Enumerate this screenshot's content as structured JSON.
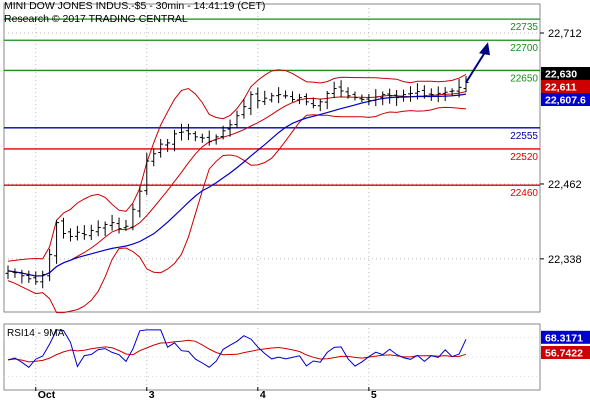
{
  "header": {
    "line1": "MINI DOW JONES INDUS.-$5 - 30min - 14:41:19 (CET)",
    "line2": "Research © 2017 TRADING CENTRAL"
  },
  "chart_data": {
    "type": "candlestick",
    "price_axis": {
      "ylim": [
        22250,
        22760
      ],
      "ticks": [
        "22,712",
        "22,462",
        "22,338"
      ],
      "tick_values": [
        22712,
        22462,
        22338
      ]
    },
    "time_axis": {
      "labels": [
        "Oct",
        "3",
        "4",
        "5"
      ],
      "bar_index": [
        4,
        20,
        36,
        52
      ],
      "count": 67
    },
    "levels": [
      {
        "label": "22735",
        "value": 22735,
        "color": "#1a8c1a"
      },
      {
        "label": "22700",
        "value": 22700,
        "color": "#1a8c1a"
      },
      {
        "label": "22650",
        "value": 22650,
        "color": "#1a8c1a"
      },
      {
        "label": "22555",
        "value": 22555,
        "color": "#0000aa"
      },
      {
        "label": "22520",
        "value": 22520,
        "color": "#e00000"
      },
      {
        "label": "22460",
        "value": 22460,
        "color": "#e00000"
      }
    ],
    "price_tags": [
      {
        "label": "22,630",
        "value": 22630,
        "bg": "#000000",
        "fg": "#ffffff"
      },
      {
        "label": "22,611",
        "value": 22611,
        "bg": "#cc0000",
        "fg": "#ffffff"
      },
      {
        "label": "22,607.6",
        "value": 22607.6,
        "bg": "#0000cc",
        "fg": "#ffffff"
      }
    ],
    "closes": [
      22318,
      22315,
      22310,
      22305,
      22300,
      22312,
      22345,
      22398,
      22380,
      22375,
      22382,
      22378,
      22385,
      22390,
      22395,
      22398,
      22388,
      22392,
      22420,
      22450,
      22500,
      22512,
      22528,
      22530,
      22545,
      22548,
      22545,
      22540,
      22538,
      22532,
      22540,
      22550,
      22560,
      22575,
      22590,
      22610,
      22600,
      22604,
      22608,
      22610,
      22608,
      22602,
      22605,
      22598,
      22592,
      22598,
      22612,
      22620,
      22616,
      22608,
      22605,
      22602,
      22600,
      22606,
      22610,
      22608,
      22605,
      22610,
      22612,
      22615,
      22608,
      22610,
      22612,
      22614,
      22616,
      22622,
      22630
    ],
    "series": [
      {
        "name": "",
        "color": "#0000cc"
      },
      {
        "name": "",
        "color": "#cc0000"
      }
    ],
    "projection": {
      "color": "#000080",
      "target": 22700
    },
    "rsi": {
      "title": "RSI14 - 9MA",
      "tags": [
        {
          "label": "68.3171",
          "value": 68.3171,
          "bg": "#0000cc",
          "fg": "#ffffff"
        },
        {
          "label": "56.7422",
          "value": 56.7422,
          "bg": "#cc0000",
          "fg": "#ffffff"
        }
      ]
    }
  }
}
